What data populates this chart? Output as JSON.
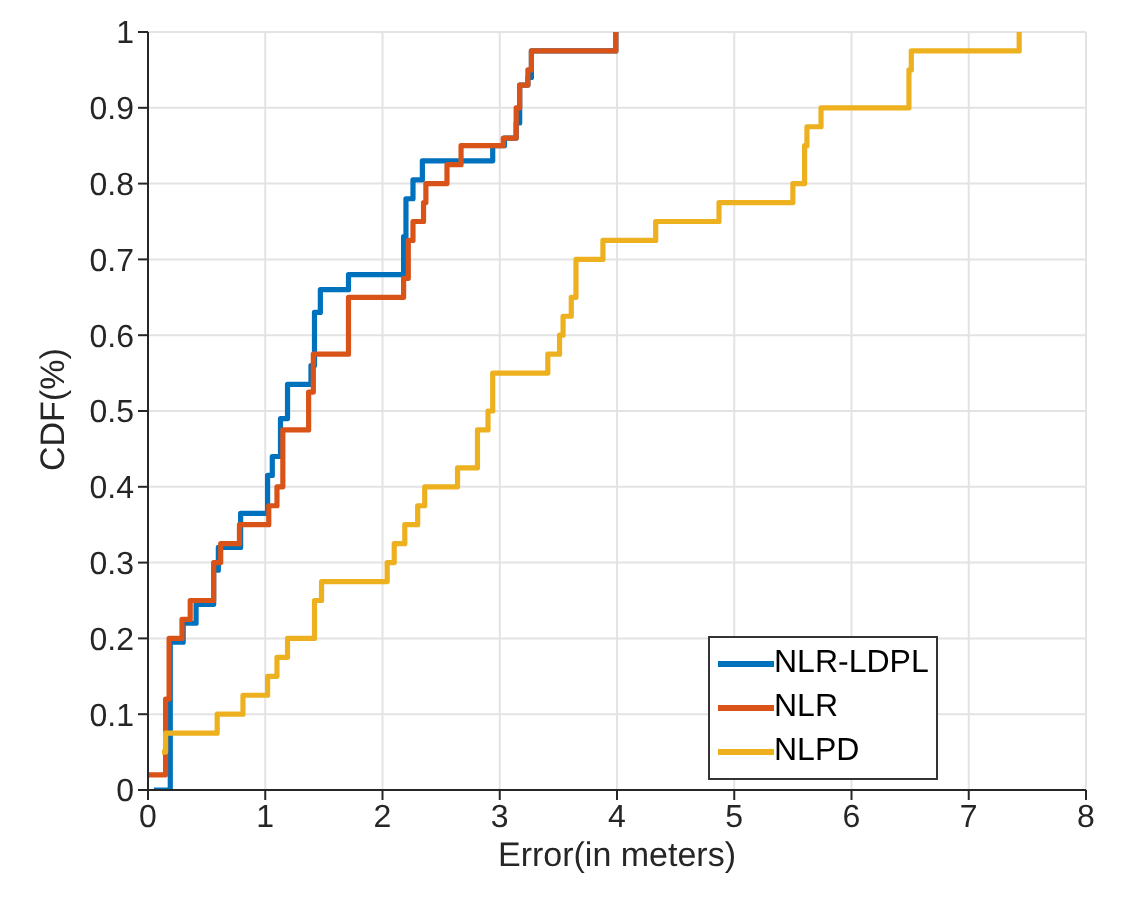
{
  "chart_data": {
    "type": "step",
    "xlabel": "Error(in meters)",
    "ylabel": "CDF(%)",
    "xlim": [
      0,
      8
    ],
    "xticks": [
      0,
      1,
      2,
      3,
      4,
      5,
      6,
      7,
      8
    ],
    "ylim": [
      0,
      1
    ],
    "yticks": [
      0,
      0.1,
      0.2,
      0.3,
      0.4,
      0.5,
      0.6,
      0.7,
      0.8,
      0.9,
      1
    ],
    "grid": true,
    "legend": "bottom right",
    "series": [
      {
        "name": "NLR-LDPL",
        "color": "#0072bd",
        "x": [
          0.05,
          0.19,
          0.3,
          0.41,
          0.56,
          0.6,
          0.79,
          1.02,
          1.06,
          1.13,
          1.19,
          1.39,
          1.42,
          1.47,
          1.71,
          2.18,
          2.2,
          2.26,
          2.34,
          2.94,
          3.04,
          3.14,
          3.17,
          3.24,
          3.27,
          3.99
        ],
        "values": [
          0,
          0.195,
          0.22,
          0.245,
          0.29,
          0.32,
          0.365,
          0.415,
          0.44,
          0.49,
          0.535,
          0.56,
          0.63,
          0.66,
          0.68,
          0.73,
          0.78,
          0.805,
          0.83,
          0.85,
          0.86,
          0.88,
          0.93,
          0.94,
          0.975,
          1.0
        ]
      },
      {
        "name": "NLR",
        "color": "#d95319",
        "x": [
          0.0,
          0.15,
          0.18,
          0.29,
          0.36,
          0.56,
          0.62,
          0.78,
          1.03,
          1.1,
          1.15,
          1.37,
          1.41,
          1.71,
          2.18,
          2.22,
          2.26,
          2.35,
          2.37,
          2.55,
          2.67,
          3.03,
          3.14,
          3.17,
          3.24,
          3.27,
          3.99
        ],
        "values": [
          0.02,
          0.12,
          0.2,
          0.225,
          0.25,
          0.3,
          0.325,
          0.35,
          0.375,
          0.4,
          0.475,
          0.525,
          0.575,
          0.65,
          0.675,
          0.725,
          0.75,
          0.775,
          0.8,
          0.825,
          0.85,
          0.86,
          0.9,
          0.93,
          0.95,
          0.975,
          1.0
        ]
      },
      {
        "name": "NLPD",
        "color": "#edb120",
        "x": [
          0.12,
          0.15,
          0.59,
          0.81,
          1.02,
          1.1,
          1.19,
          1.42,
          1.48,
          2.04,
          2.1,
          2.19,
          2.3,
          2.36,
          2.64,
          2.81,
          2.9,
          2.94,
          3.41,
          3.51,
          3.54,
          3.61,
          3.65,
          3.88,
          4.33,
          4.87,
          5.5,
          5.6,
          5.62,
          5.74,
          6.49,
          6.51,
          7.43
        ],
        "values": [
          0.05,
          0.075,
          0.1,
          0.125,
          0.15,
          0.175,
          0.2,
          0.25,
          0.275,
          0.3,
          0.325,
          0.35,
          0.375,
          0.4,
          0.425,
          0.475,
          0.5,
          0.55,
          0.575,
          0.6,
          0.625,
          0.65,
          0.7,
          0.725,
          0.75,
          0.775,
          0.8,
          0.85,
          0.875,
          0.9,
          0.95,
          0.975,
          1.0
        ]
      }
    ]
  }
}
